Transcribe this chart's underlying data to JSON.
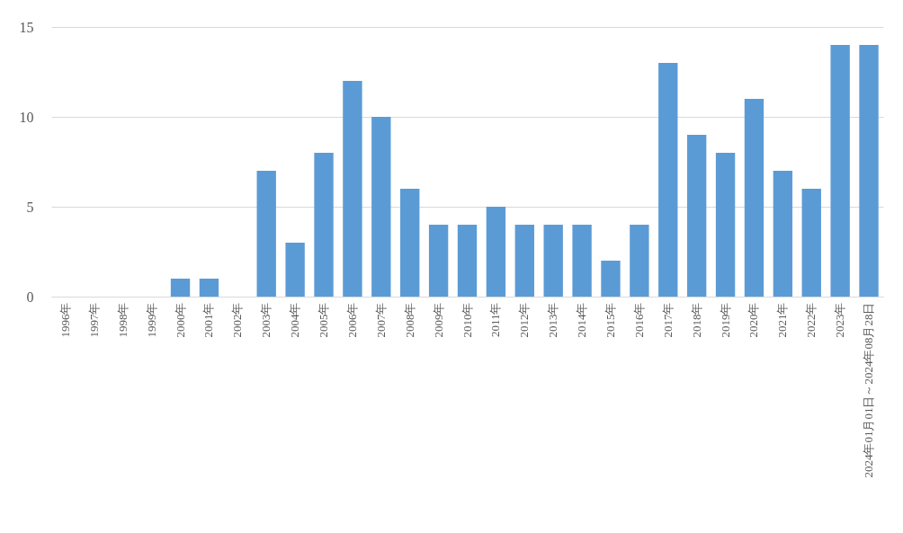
{
  "chart_data": {
    "type": "bar",
    "categories": [
      "1996年",
      "1997年",
      "1998年",
      "1999年",
      "2000年",
      "2001年",
      "2002年",
      "2003年",
      "2004年",
      "2005年",
      "2006年",
      "2007年",
      "2008年",
      "2009年",
      "2010年",
      "2011年",
      "2012年",
      "2013年",
      "2014年",
      "2015年",
      "2016年",
      "2017年",
      "2018年",
      "2019年",
      "2020年",
      "2021年",
      "2022年",
      "2023年",
      "2024年01月01日～2024年08月28日"
    ],
    "values": [
      0,
      0,
      0,
      0,
      1,
      1,
      0,
      7,
      3,
      8,
      12,
      10,
      6,
      4,
      4,
      5,
      4,
      4,
      4,
      2,
      4,
      13,
      9,
      8,
      11,
      7,
      6,
      14,
      14
    ],
    "color": "#5b9bd5",
    "ylim": [
      0,
      15
    ],
    "yticks": [
      0,
      5,
      10,
      15
    ],
    "grid": "y"
  }
}
